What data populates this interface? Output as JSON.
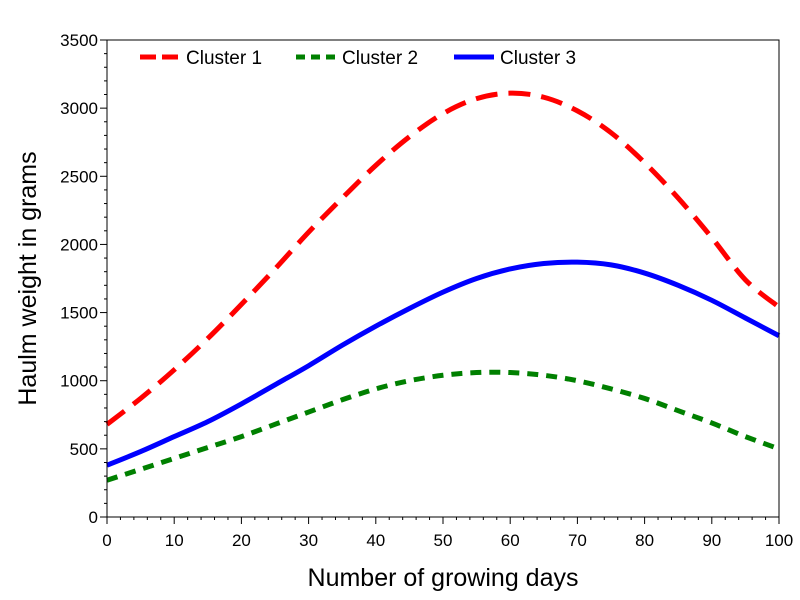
{
  "chart_data": {
    "type": "line",
    "title": "",
    "xlabel": "Number of growing days",
    "ylabel": "Haulm weight in grams",
    "xlim": [
      0,
      100
    ],
    "ylim": [
      0,
      3500
    ],
    "xticks": [
      0,
      10,
      20,
      30,
      40,
      50,
      60,
      70,
      80,
      90,
      100
    ],
    "yticks": [
      0,
      500,
      1000,
      1500,
      2000,
      2500,
      3000,
      3500
    ],
    "grid": false,
    "legend_position": "top",
    "x": [
      0,
      5,
      10,
      15,
      20,
      25,
      30,
      35,
      40,
      45,
      50,
      55,
      60,
      65,
      70,
      75,
      80,
      85,
      90,
      95,
      100
    ],
    "series": [
      {
        "name": "Cluster 1",
        "color": "#ff0000",
        "style": "long-dash",
        "values": [
          680,
          870,
          1080,
          1310,
          1560,
          1820,
          2090,
          2340,
          2580,
          2790,
          2960,
          3070,
          3110,
          3080,
          2980,
          2820,
          2600,
          2340,
          2050,
          1740,
          1540
        ]
      },
      {
        "name": "Cluster 2",
        "color": "#008000",
        "style": "short-dash",
        "values": [
          270,
          350,
          430,
          510,
          590,
          680,
          770,
          860,
          940,
          1000,
          1040,
          1060,
          1060,
          1040,
          1000,
          940,
          870,
          780,
          690,
          590,
          500
        ]
      },
      {
        "name": "Cluster 3",
        "color": "#0000ff",
        "style": "solid",
        "values": [
          380,
          480,
          590,
          700,
          830,
          970,
          1110,
          1260,
          1400,
          1530,
          1650,
          1750,
          1820,
          1860,
          1870,
          1850,
          1790,
          1700,
          1590,
          1460,
          1330
        ]
      }
    ]
  }
}
